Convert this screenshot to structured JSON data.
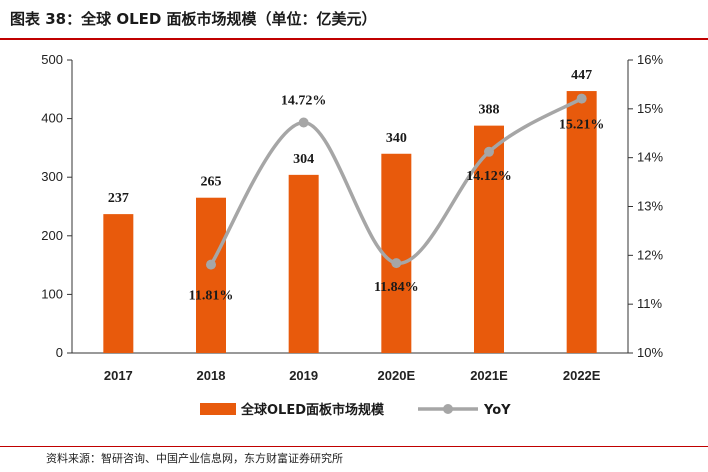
{
  "header": {
    "title": "图表 38：全球 OLED 面板市场规模（单位：亿美元）"
  },
  "footer": {
    "source": "资料来源：智研咨询、中国产业信息网，东方财富证券研究所"
  },
  "chart_data": {
    "type": "bar",
    "categories": [
      "2017",
      "2018",
      "2019",
      "2020E",
      "2021E",
      "2022E"
    ],
    "series": [
      {
        "name": "全球OLED面板市场规模",
        "type": "bar",
        "axis": "left",
        "color": "#e85a0c",
        "values": [
          237,
          265,
          304,
          340,
          388,
          447
        ],
        "labels": [
          "237",
          "265",
          "304",
          "340",
          "388",
          "447"
        ]
      },
      {
        "name": "YoY",
        "type": "line",
        "axis": "right",
        "color": "#a6a6a6",
        "values": [
          null,
          11.81,
          14.72,
          11.84,
          14.12,
          15.21
        ],
        "labels": [
          "",
          "11.81%",
          "14.72%",
          "11.84%",
          "14.12%",
          "15.21%"
        ]
      }
    ],
    "y_left": {
      "ylim": [
        0,
        500
      ],
      "ticks": [
        "0",
        "100",
        "200",
        "300",
        "400",
        "500"
      ]
    },
    "y_right": {
      "ylim": [
        10,
        16
      ],
      "ticks": [
        "10%",
        "11%",
        "12%",
        "13%",
        "14%",
        "15%",
        "16%"
      ]
    },
    "legend": "bottom-center",
    "grid": false
  }
}
